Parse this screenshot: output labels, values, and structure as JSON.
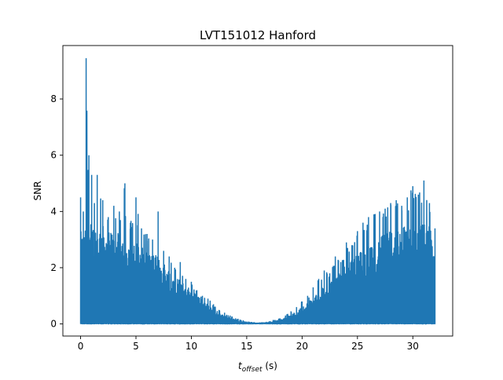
{
  "chart_data": {
    "type": "line",
    "title": "LVT151012 Hanford",
    "xlabel": {
      "main": "t",
      "sub": "offset",
      "unit": " (s)"
    },
    "ylabel": "SNR",
    "xlim": [
      -1.6,
      33.6
    ],
    "ylim": [
      -0.43,
      9.9
    ],
    "x_ticks": [
      0,
      5,
      10,
      15,
      20,
      25,
      30
    ],
    "y_ticks": [
      0,
      2,
      4,
      6,
      8
    ],
    "grid": false,
    "legend": "none",
    "line_color": "#1f77b4",
    "series": [
      {
        "x": [
          0.0,
          0.25,
          0.5,
          0.75,
          1.0,
          1.25,
          1.5,
          2.0,
          2.5,
          3.0,
          3.5,
          4.0,
          4.5,
          5.0,
          5.5,
          6.0,
          6.5,
          7.0,
          7.5,
          8.0,
          8.5,
          9.0,
          9.5,
          10.0,
          10.5,
          11.0,
          11.5,
          12.0,
          12.5,
          13.0,
          13.5,
          14.0,
          14.5,
          15.0,
          15.5,
          16.0,
          16.5,
          17.0,
          17.5,
          18.0,
          18.5,
          19.0,
          19.5,
          20.0,
          20.5,
          21.0,
          21.5,
          22.0,
          22.5,
          23.0,
          23.5,
          24.0,
          24.5,
          25.0,
          25.5,
          26.0,
          26.5,
          27.0,
          27.5,
          28.0,
          28.5,
          29.0,
          29.5,
          30.0,
          30.5,
          31.0,
          31.5,
          32.0
        ],
        "y_peak": [
          4.5,
          4.0,
          9.45,
          6.0,
          5.3,
          4.3,
          5.3,
          4.4,
          3.8,
          4.2,
          4.0,
          5.0,
          3.6,
          4.5,
          3.4,
          3.2,
          3.0,
          4.0,
          2.6,
          2.4,
          2.0,
          2.2,
          1.6,
          1.5,
          1.2,
          1.0,
          0.9,
          0.7,
          0.5,
          0.4,
          0.3,
          0.2,
          0.14,
          0.08,
          0.05,
          0.04,
          0.05,
          0.08,
          0.14,
          0.2,
          0.3,
          0.45,
          0.6,
          0.8,
          1.0,
          1.3,
          1.6,
          1.9,
          1.8,
          2.4,
          2.2,
          2.9,
          2.8,
          3.3,
          3.6,
          3.8,
          3.9,
          4.0,
          4.1,
          4.3,
          4.4,
          4.2,
          4.5,
          4.9,
          4.6,
          5.1,
          4.3,
          3.4
        ],
        "y_envelope": [
          3.3,
          3.2,
          3.4,
          3.6,
          3.6,
          3.5,
          3.5,
          3.5,
          3.4,
          3.3,
          3.2,
          3.1,
          3.0,
          2.9,
          2.8,
          2.6,
          2.5,
          2.4,
          2.2,
          2.0,
          1.8,
          1.6,
          1.4,
          1.2,
          1.0,
          0.85,
          0.7,
          0.55,
          0.4,
          0.3,
          0.22,
          0.15,
          0.1,
          0.06,
          0.04,
          0.03,
          0.04,
          0.06,
          0.1,
          0.15,
          0.22,
          0.33,
          0.45,
          0.6,
          0.75,
          0.95,
          1.15,
          1.35,
          1.55,
          1.75,
          1.95,
          2.15,
          2.3,
          2.5,
          2.65,
          2.8,
          2.95,
          3.1,
          3.2,
          3.3,
          3.4,
          3.45,
          3.5,
          3.55,
          3.6,
          3.6,
          3.5,
          2.6
        ]
      }
    ]
  }
}
